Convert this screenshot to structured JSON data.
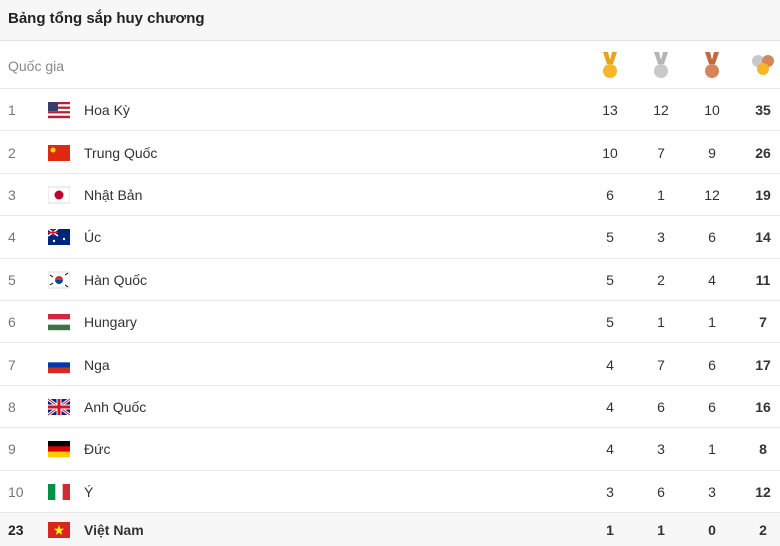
{
  "header": {
    "title": "Bảng tổng sắp huy chương"
  },
  "table": {
    "country_header": "Quốc gia",
    "rows": [
      [
        1,
        "Hoa Kỳ",
        13,
        12,
        10,
        35
      ],
      [
        2,
        "Trung Quốc",
        10,
        7,
        9,
        26
      ],
      [
        3,
        "Nhật Bản",
        6,
        1,
        12,
        19
      ],
      [
        4,
        "Úc",
        5,
        3,
        6,
        14
      ],
      [
        5,
        "Hàn Quốc",
        5,
        2,
        4,
        11
      ],
      [
        6,
        "Hungary",
        5,
        1,
        1,
        7
      ],
      [
        7,
        "Nga",
        4,
        7,
        6,
        17
      ],
      [
        8,
        "Anh Quốc",
        4,
        6,
        6,
        16
      ],
      [
        9,
        "Đức",
        4,
        3,
        1,
        8
      ],
      [
        10,
        "Ý",
        3,
        6,
        3,
        12
      ],
      [
        23,
        "Việt Nam",
        1,
        1,
        0,
        2
      ]
    ]
  }
}
